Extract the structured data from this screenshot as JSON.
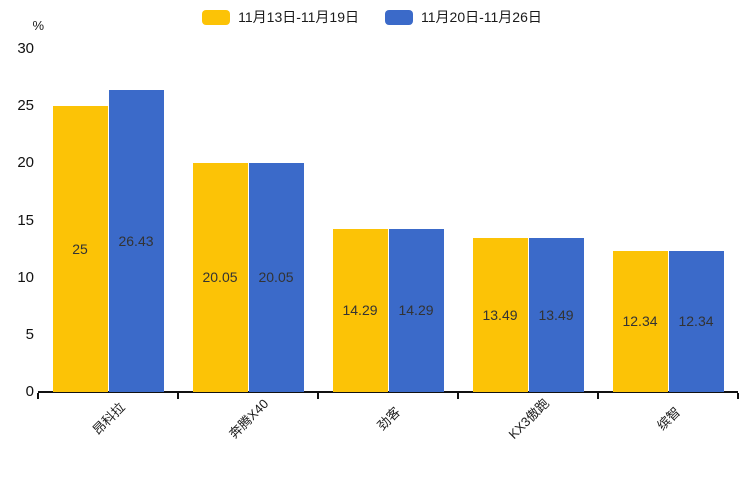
{
  "chart_data": {
    "type": "bar",
    "title": "",
    "categories": [
      "昂科拉",
      "奔腾X40",
      "劲客",
      "KX3傲跑",
      "缤智"
    ],
    "series": [
      {
        "name": "11月13日-11月19日",
        "color": "#FCC306",
        "values": [
          25,
          20.05,
          14.29,
          13.49,
          12.34
        ]
      },
      {
        "name": "11月20日-11月26日",
        "color": "#3B6AC9",
        "values": [
          26.43,
          20.05,
          14.29,
          13.49,
          12.34
        ]
      }
    ],
    "bar_value_labels": [
      [
        "25",
        "20.05",
        "14.29",
        "13.49",
        "12.34"
      ],
      [
        "26.43",
        "20.05",
        "14.29",
        "13.49",
        "12.34"
      ]
    ],
    "xlabel": "",
    "ylabel": "%",
    "yticks": [
      "0",
      "5",
      "10",
      "15",
      "20",
      "25",
      "30"
    ],
    "ylim": [
      0,
      30
    ],
    "grid": false,
    "legend_position": "top",
    "colors": {
      "axis": "#111111",
      "tick_text": "#111111",
      "bar_label_text": "#333333",
      "background": "#ffffff"
    }
  }
}
